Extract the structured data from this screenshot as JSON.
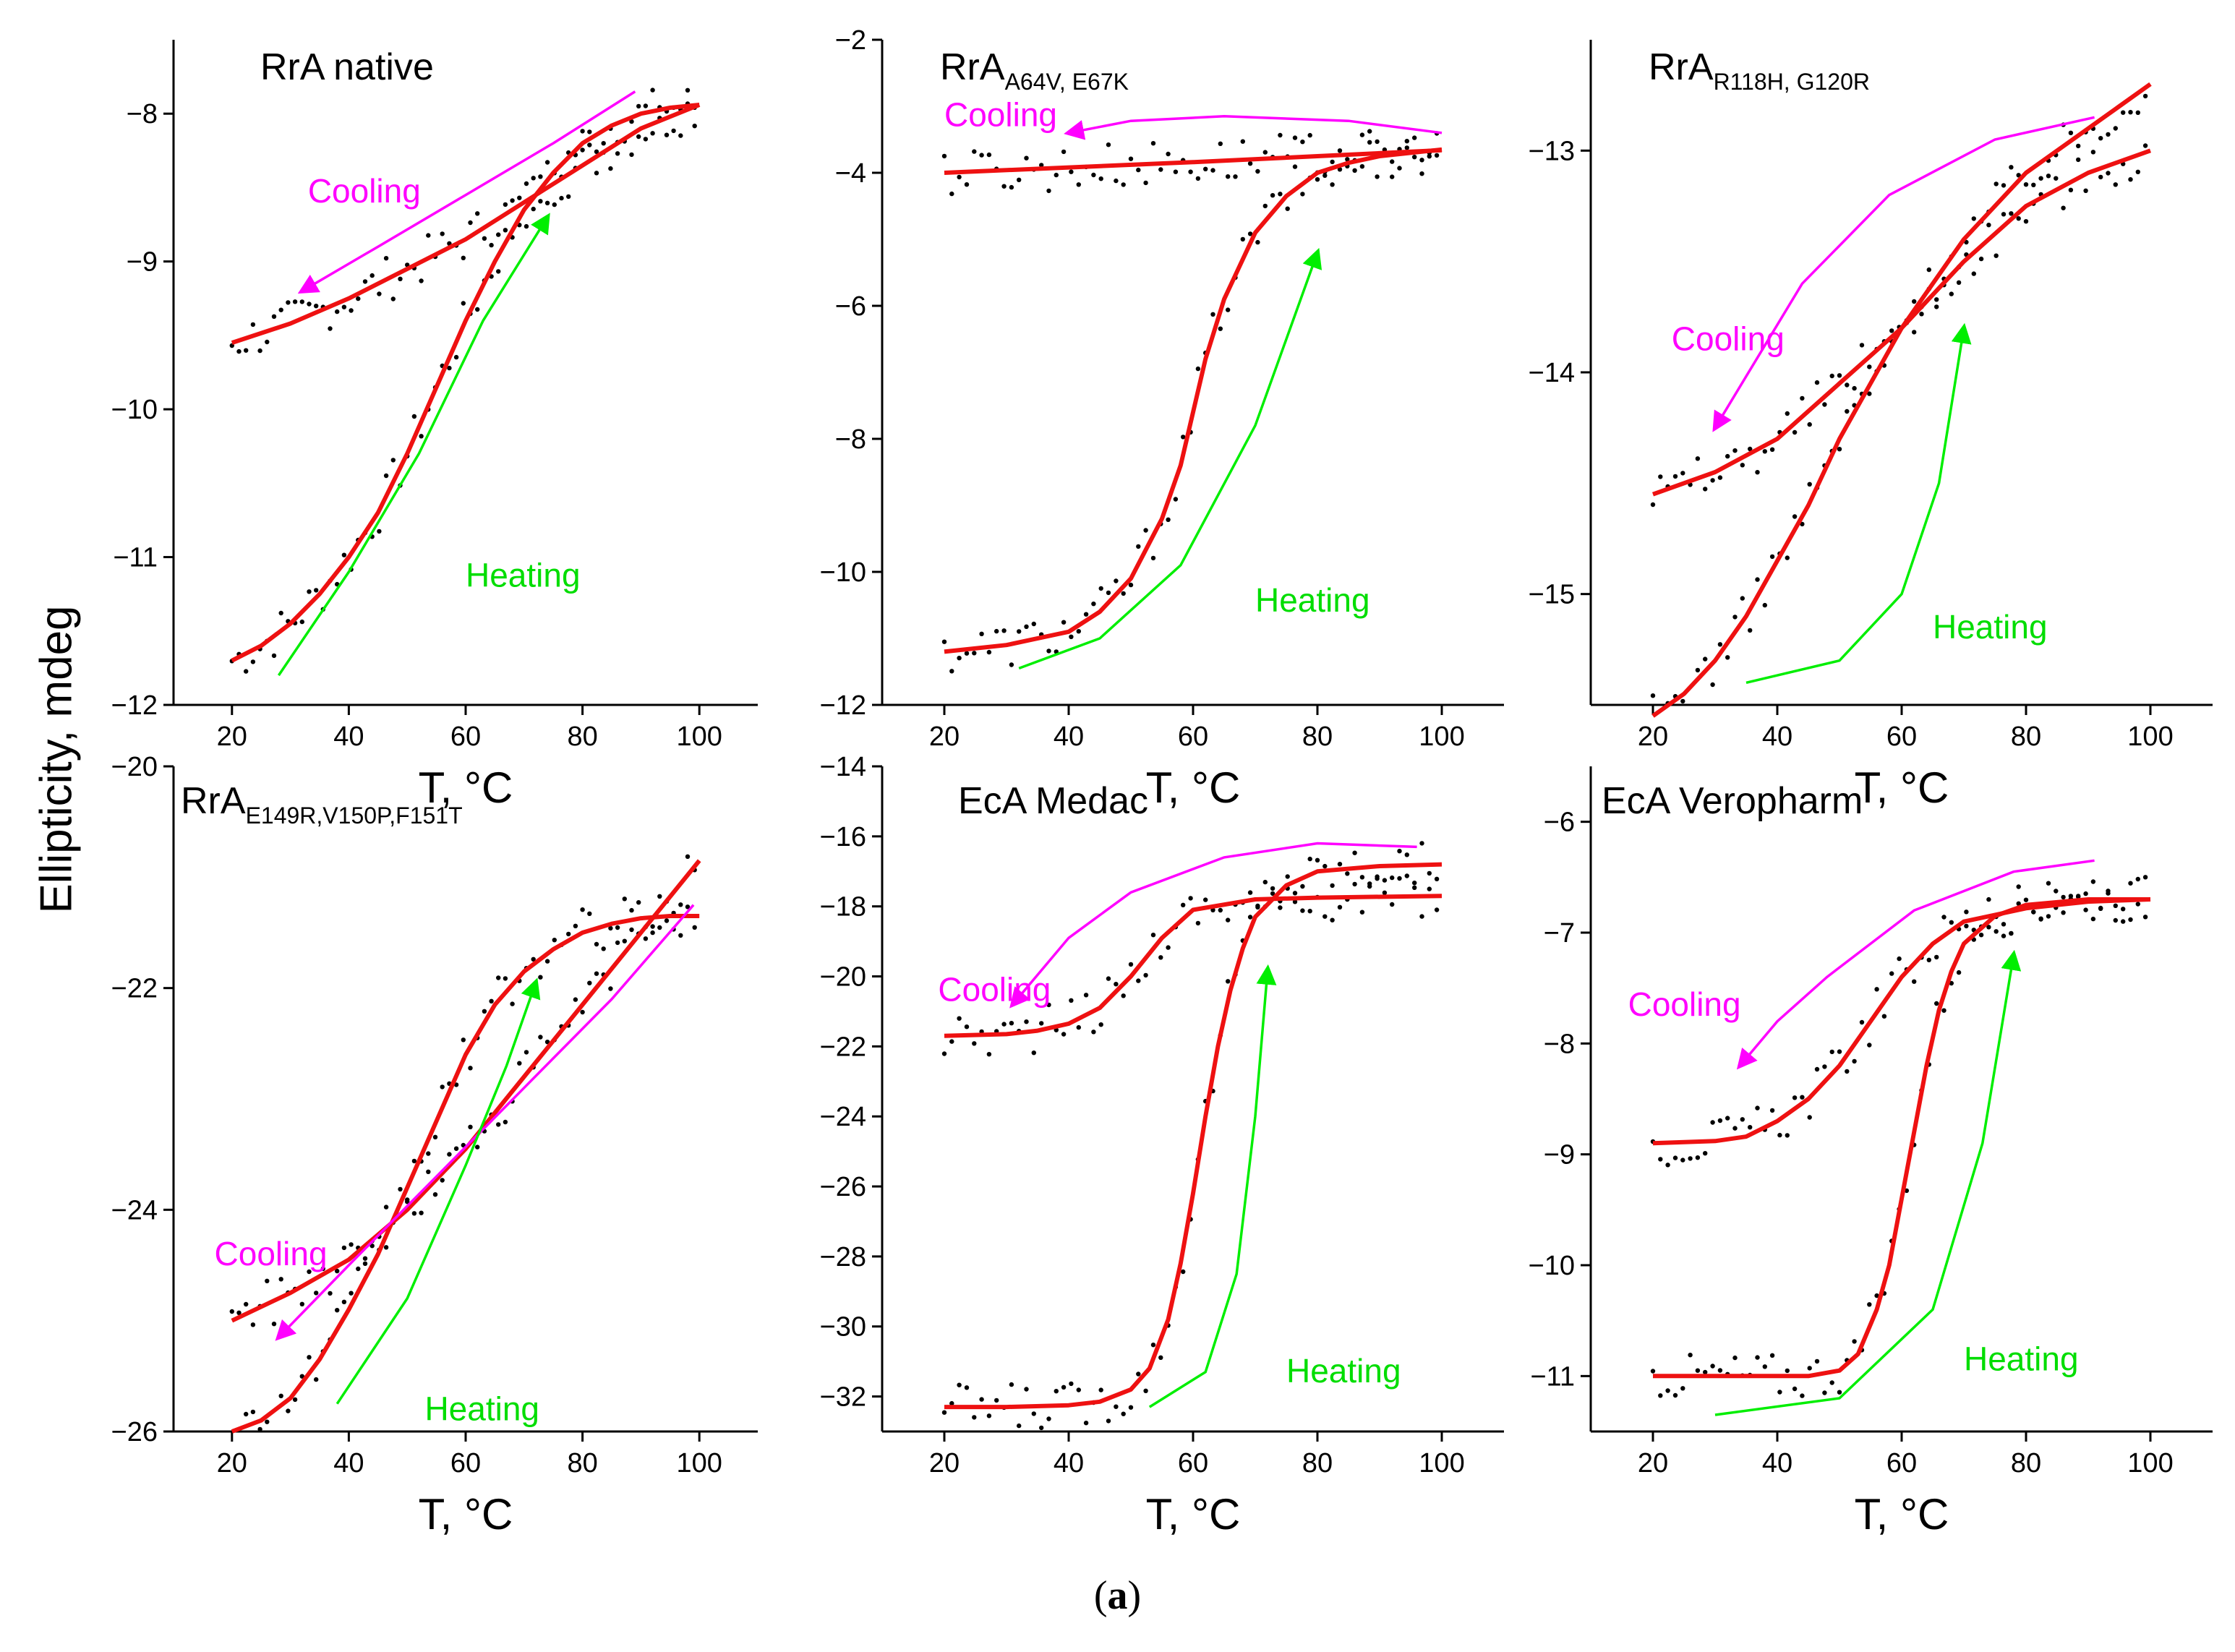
{
  "figure": {
    "y_axis_label": "Ellipticity, mdeg",
    "caption_open": "(",
    "caption_letter": "a",
    "caption_close": ")",
    "colors": {
      "fit": "#ee1111",
      "cooling": "#ff00ff",
      "heating": "#00ee00",
      "points": "#000000",
      "axis": "#000000"
    }
  },
  "chart_data": [
    {
      "type": "scatter",
      "title": "RrA native",
      "title_main": "RrA native",
      "title_sub": "",
      "xlabel": "T, °C",
      "ylabel": "Ellipticity, mdeg",
      "xlim": [
        10,
        110
      ],
      "ylim": [
        -12,
        -7.5
      ],
      "xticks": [
        20,
        40,
        60,
        80,
        100
      ],
      "yticks": [
        -12,
        -11,
        -10,
        -9,
        -8
      ],
      "cooling_label": "Cooling",
      "heating_label": "Heating",
      "cooling_label_at": [
        33,
        -8.6
      ],
      "heating_label_at": [
        60,
        -11.2
      ],
      "series": [
        {
          "name": "Heating fit",
          "x": [
            20,
            25,
            30,
            35,
            40,
            45,
            50,
            55,
            60,
            65,
            70,
            75,
            80,
            85,
            90,
            95,
            100
          ],
          "y": [
            -11.7,
            -11.6,
            -11.45,
            -11.25,
            -11.0,
            -10.7,
            -10.3,
            -9.85,
            -9.4,
            -9.0,
            -8.65,
            -8.4,
            -8.2,
            -8.08,
            -8.0,
            -7.96,
            -7.94
          ]
        },
        {
          "name": "Cooling fit",
          "x": [
            20,
            30,
            40,
            50,
            60,
            70,
            80,
            90,
            100
          ],
          "y": [
            -9.55,
            -9.42,
            -9.25,
            -9.05,
            -8.85,
            -8.6,
            -8.35,
            -8.1,
            -7.94
          ]
        },
        {
          "name": "Cooling arrow",
          "x": [
            89,
            75,
            60,
            45,
            32
          ],
          "y": [
            -7.85,
            -8.2,
            -8.55,
            -8.9,
            -9.2
          ]
        },
        {
          "name": "Heating arrow",
          "x": [
            28,
            40,
            52,
            63,
            74
          ],
          "y": [
            -11.8,
            -11.1,
            -10.3,
            -9.4,
            -8.7
          ]
        }
      ]
    },
    {
      "type": "scatter",
      "title": "RrA A64V, E67K",
      "title_main": "RrA",
      "title_sub": "A64V, E67K",
      "xlabel": "T, °C",
      "ylabel": "Ellipticity, mdeg",
      "xlim": [
        10,
        110
      ],
      "ylim": [
        -12,
        -2
      ],
      "xticks": [
        20,
        40,
        60,
        80,
        100
      ],
      "yticks": [
        -12,
        -10,
        -8,
        -6,
        -4,
        -2
      ],
      "cooling_label": "Cooling",
      "heating_label": "Heating",
      "cooling_label_at": [
        20,
        -3.3
      ],
      "heating_label_at": [
        70,
        -10.6
      ],
      "series": [
        {
          "name": "Heating fit",
          "x": [
            20,
            30,
            40,
            45,
            50,
            55,
            58,
            60,
            62,
            65,
            70,
            75,
            80,
            85,
            90,
            100
          ],
          "y": [
            -11.2,
            -11.1,
            -10.9,
            -10.6,
            -10.1,
            -9.2,
            -8.4,
            -7.6,
            -6.8,
            -5.9,
            -4.9,
            -4.35,
            -4.0,
            -3.85,
            -3.75,
            -3.65
          ]
        },
        {
          "name": "Cooling fit",
          "x": [
            20,
            40,
            60,
            80,
            100
          ],
          "y": [
            -4.0,
            -3.92,
            -3.84,
            -3.75,
            -3.66
          ]
        },
        {
          "name": "Cooling arrow",
          "x": [
            100,
            85,
            65,
            50,
            40
          ],
          "y": [
            -3.4,
            -3.22,
            -3.15,
            -3.22,
            -3.4
          ]
        },
        {
          "name": "Heating arrow",
          "x": [
            32,
            45,
            58,
            70,
            80
          ],
          "y": [
            -11.45,
            -11.0,
            -9.9,
            -7.8,
            -5.2
          ]
        }
      ]
    },
    {
      "type": "scatter",
      "title": "RrA R118H, G120R",
      "title_main": "RrA",
      "title_sub": "R118H, G120R",
      "xlabel": "T, °C",
      "ylabel": "Ellipticity, mdeg",
      "xlim": [
        10,
        110
      ],
      "ylim": [
        -15.5,
        -12.5
      ],
      "xticks": [
        20,
        40,
        60,
        80,
        100
      ],
      "yticks": [
        -15,
        -14,
        -13
      ],
      "cooling_label": "Cooling",
      "heating_label": "Heating",
      "cooling_label_at": [
        23,
        -13.9
      ],
      "heating_label_at": [
        65,
        -15.2
      ],
      "series": [
        {
          "name": "Heating fit",
          "x": [
            20,
            25,
            30,
            35,
            40,
            45,
            50,
            55,
            60,
            65,
            70,
            75,
            80,
            85,
            90,
            95,
            100
          ],
          "y": [
            -15.55,
            -15.45,
            -15.3,
            -15.1,
            -14.85,
            -14.6,
            -14.3,
            -14.05,
            -13.8,
            -13.6,
            -13.4,
            -13.25,
            -13.1,
            -13.0,
            -12.9,
            -12.8,
            -12.7
          ]
        },
        {
          "name": "Cooling fit",
          "x": [
            20,
            30,
            40,
            50,
            60,
            70,
            80,
            90,
            100
          ],
          "y": [
            -14.55,
            -14.45,
            -14.3,
            -14.05,
            -13.8,
            -13.5,
            -13.25,
            -13.1,
            -13.0
          ]
        },
        {
          "name": "Cooling arrow",
          "x": [
            91,
            75,
            58,
            44,
            30
          ],
          "y": [
            -12.85,
            -12.95,
            -13.2,
            -13.6,
            -14.25
          ]
        },
        {
          "name": "Heating arrow",
          "x": [
            35,
            50,
            60,
            66,
            70
          ],
          "y": [
            -15.4,
            -15.3,
            -15.0,
            -14.5,
            -13.8
          ]
        }
      ]
    },
    {
      "type": "scatter",
      "title": "RrA E149R,V150P,F151T",
      "title_main": "RrA",
      "title_sub": "E149R,V150P,F151T",
      "xlabel": "T, °C",
      "ylabel": "Ellipticity, mdeg",
      "xlim": [
        10,
        110
      ],
      "ylim": [
        -26,
        -20
      ],
      "xticks": [
        20,
        40,
        60,
        80,
        100
      ],
      "yticks": [
        -26,
        -24,
        -22,
        -20
      ],
      "cooling_label": "Cooling",
      "heating_label": "Heating",
      "cooling_label_at": [
        17,
        -24.5
      ],
      "heating_label_at": [
        53,
        -25.9
      ],
      "series": [
        {
          "name": "Heating fit",
          "x": [
            20,
            25,
            30,
            35,
            40,
            45,
            50,
            55,
            60,
            65,
            70,
            75,
            80,
            85,
            90,
            95,
            100
          ],
          "y": [
            -26.0,
            -25.9,
            -25.7,
            -25.35,
            -24.9,
            -24.4,
            -23.8,
            -23.2,
            -22.6,
            -22.15,
            -21.85,
            -21.65,
            -21.5,
            -21.42,
            -21.37,
            -21.35,
            -21.35
          ]
        },
        {
          "name": "Cooling fit",
          "x": [
            20,
            30,
            40,
            50,
            60,
            70,
            80,
            90,
            100
          ],
          "y": [
            -25.0,
            -24.75,
            -24.45,
            -24.0,
            -23.45,
            -22.8,
            -22.15,
            -21.5,
            -20.85
          ]
        },
        {
          "name": "Cooling arrow",
          "x": [
            99,
            85,
            70,
            55,
            40,
            28
          ],
          "y": [
            -21.25,
            -22.1,
            -22.9,
            -23.7,
            -24.5,
            -25.15
          ]
        },
        {
          "name": "Heating arrow",
          "x": [
            38,
            50,
            60,
            67,
            72
          ],
          "y": [
            -25.75,
            -24.8,
            -23.6,
            -22.7,
            -21.95
          ]
        }
      ]
    },
    {
      "type": "scatter",
      "title": "EcA Medac",
      "title_main": "EcA Medac",
      "title_sub": "",
      "xlabel": "T, °C",
      "ylabel": "Ellipticity, mdeg",
      "xlim": [
        10,
        110
      ],
      "ylim": [
        -33,
        -14
      ],
      "xticks": [
        20,
        40,
        60,
        80,
        100
      ],
      "yticks": [
        -32,
        -30,
        -28,
        -26,
        -24,
        -22,
        -20,
        -18,
        -16,
        -14
      ],
      "cooling_label": "Cooling",
      "heating_label": "Heating",
      "cooling_label_at": [
        19,
        -20.7
      ],
      "heating_label_at": [
        75,
        -31.6
      ],
      "series": [
        {
          "name": "Heating fit",
          "x": [
            20,
            30,
            40,
            45,
            50,
            53,
            56,
            58,
            60,
            62,
            64,
            66,
            68,
            70,
            75,
            80,
            90,
            100
          ],
          "y": [
            -32.3,
            -32.3,
            -32.25,
            -32.15,
            -31.8,
            -31.2,
            -29.8,
            -28.2,
            -26.2,
            -24.0,
            -22.0,
            -20.4,
            -19.2,
            -18.3,
            -17.4,
            -17.0,
            -16.85,
            -16.8
          ]
        },
        {
          "name": "Cooling fit",
          "x": [
            20,
            30,
            35,
            40,
            45,
            50,
            55,
            60,
            70,
            80,
            100
          ],
          "y": [
            -21.7,
            -21.65,
            -21.55,
            -21.35,
            -20.9,
            -20.0,
            -18.9,
            -18.1,
            -17.8,
            -17.75,
            -17.7
          ]
        },
        {
          "name": "Cooling arrow",
          "x": [
            96,
            80,
            65,
            50,
            40,
            31
          ],
          "y": [
            -16.3,
            -16.2,
            -16.6,
            -17.6,
            -18.9,
            -20.8
          ]
        },
        {
          "name": "Heating arrow",
          "x": [
            53,
            62,
            67,
            70,
            72
          ],
          "y": [
            -32.3,
            -31.3,
            -28.5,
            -24.0,
            -19.8
          ]
        }
      ]
    },
    {
      "type": "scatter",
      "title": "EcA Veropharm",
      "title_main": "EcA Veropharm",
      "title_sub": "",
      "xlabel": "T, °C",
      "ylabel": "Ellipticity, mdeg",
      "xlim": [
        10,
        110
      ],
      "ylim": [
        -11.5,
        -5.5
      ],
      "xticks": [
        20,
        40,
        60,
        80,
        100
      ],
      "yticks": [
        -11,
        -10,
        -9,
        -8,
        -7,
        -6
      ],
      "cooling_label": "Cooling",
      "heating_label": "Heating",
      "cooling_label_at": [
        16,
        -7.75
      ],
      "heating_label_at": [
        70,
        -10.95
      ],
      "series": [
        {
          "name": "Heating fit",
          "x": [
            20,
            30,
            40,
            45,
            50,
            53,
            56,
            58,
            60,
            62,
            64,
            66,
            68,
            70,
            75,
            80,
            90,
            100
          ],
          "y": [
            -11.0,
            -11.0,
            -11.0,
            -11.0,
            -10.95,
            -10.8,
            -10.4,
            -10.0,
            -9.4,
            -8.8,
            -8.2,
            -7.7,
            -7.35,
            -7.1,
            -6.85,
            -6.75,
            -6.7,
            -6.7
          ]
        },
        {
          "name": "Cooling fit",
          "x": [
            20,
            30,
            35,
            40,
            45,
            50,
            55,
            60,
            65,
            70,
            80,
            90,
            100
          ],
          "y": [
            -8.9,
            -8.88,
            -8.84,
            -8.7,
            -8.5,
            -8.2,
            -7.8,
            -7.4,
            -7.1,
            -6.9,
            -6.78,
            -6.72,
            -6.7
          ]
        },
        {
          "name": "Cooling arrow",
          "x": [
            91,
            78,
            62,
            48,
            40,
            34
          ],
          "y": [
            -6.35,
            -6.45,
            -6.8,
            -7.4,
            -7.8,
            -8.2
          ]
        },
        {
          "name": "Heating arrow",
          "x": [
            30,
            50,
            65,
            73,
            78
          ],
          "y": [
            -11.35,
            -11.2,
            -10.4,
            -8.9,
            -7.2
          ]
        }
      ]
    }
  ]
}
